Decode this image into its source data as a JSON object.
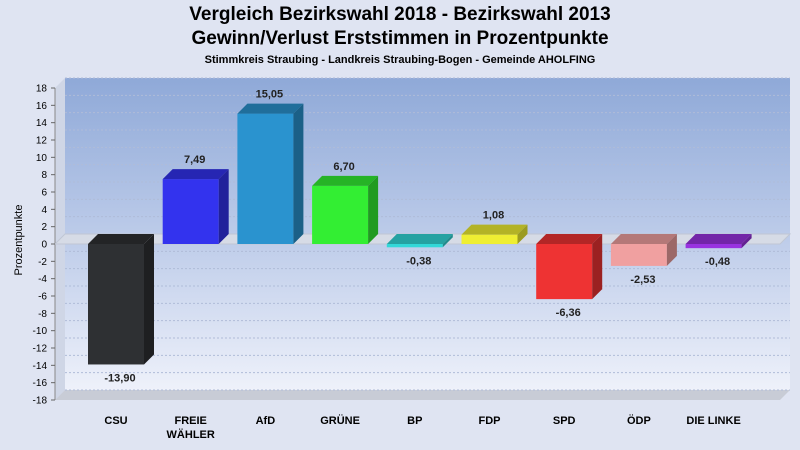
{
  "header": {
    "title_line1": "Vergleich Bezirkswahl 2018 - Bezirkswahl 2013",
    "title_line2": "Gewinn/Verlust Erststimmen in Prozentpunkte",
    "subtitle": "Stimmkreis Straubing - Landkreis Straubing-Bogen - Gemeinde AHOLFING"
  },
  "chart_data": {
    "type": "bar",
    "title": "Vergleich Bezirkswahl 2018 - Bezirkswahl 2013 / Gewinn/Verlust Erststimmen in Prozentpunkte",
    "subtitle": "Stimmkreis Straubing - Landkreis Straubing-Bogen - Gemeinde AHOLFING",
    "xlabel": "",
    "ylabel": "Prozentpunkte",
    "ylim": [
      -18,
      18
    ],
    "ytick_step": 2,
    "grid": true,
    "categories": [
      "CSU",
      "FREIE WÄHLER",
      "AfD",
      "GRÜNE",
      "BP",
      "FDP",
      "SPD",
      "ÖDP",
      "DIE LINKE"
    ],
    "category_lines": [
      [
        "CSU"
      ],
      [
        "FREIE",
        "WÄHLER"
      ],
      [
        "AfD"
      ],
      [
        "GRÜNE"
      ],
      [
        "BP"
      ],
      [
        "FDP"
      ],
      [
        "SPD"
      ],
      [
        "ÖDP"
      ],
      [
        "DIE LINKE"
      ]
    ],
    "values": [
      -13.9,
      7.49,
      15.05,
      6.7,
      -0.38,
      1.08,
      -6.36,
      -2.53,
      -0.48
    ],
    "value_labels": [
      "-13,90",
      "7,49",
      "15,05",
      "6,70",
      "-0,38",
      "1,08",
      "-6,36",
      "-2,53",
      "-0,48"
    ],
    "colors": [
      "#2e3033",
      "#3333ee",
      "#2a93cf",
      "#33ee33",
      "#33d8d8",
      "#eeee33",
      "#ee3333",
      "#f0a0a0",
      "#9933e0"
    ]
  }
}
